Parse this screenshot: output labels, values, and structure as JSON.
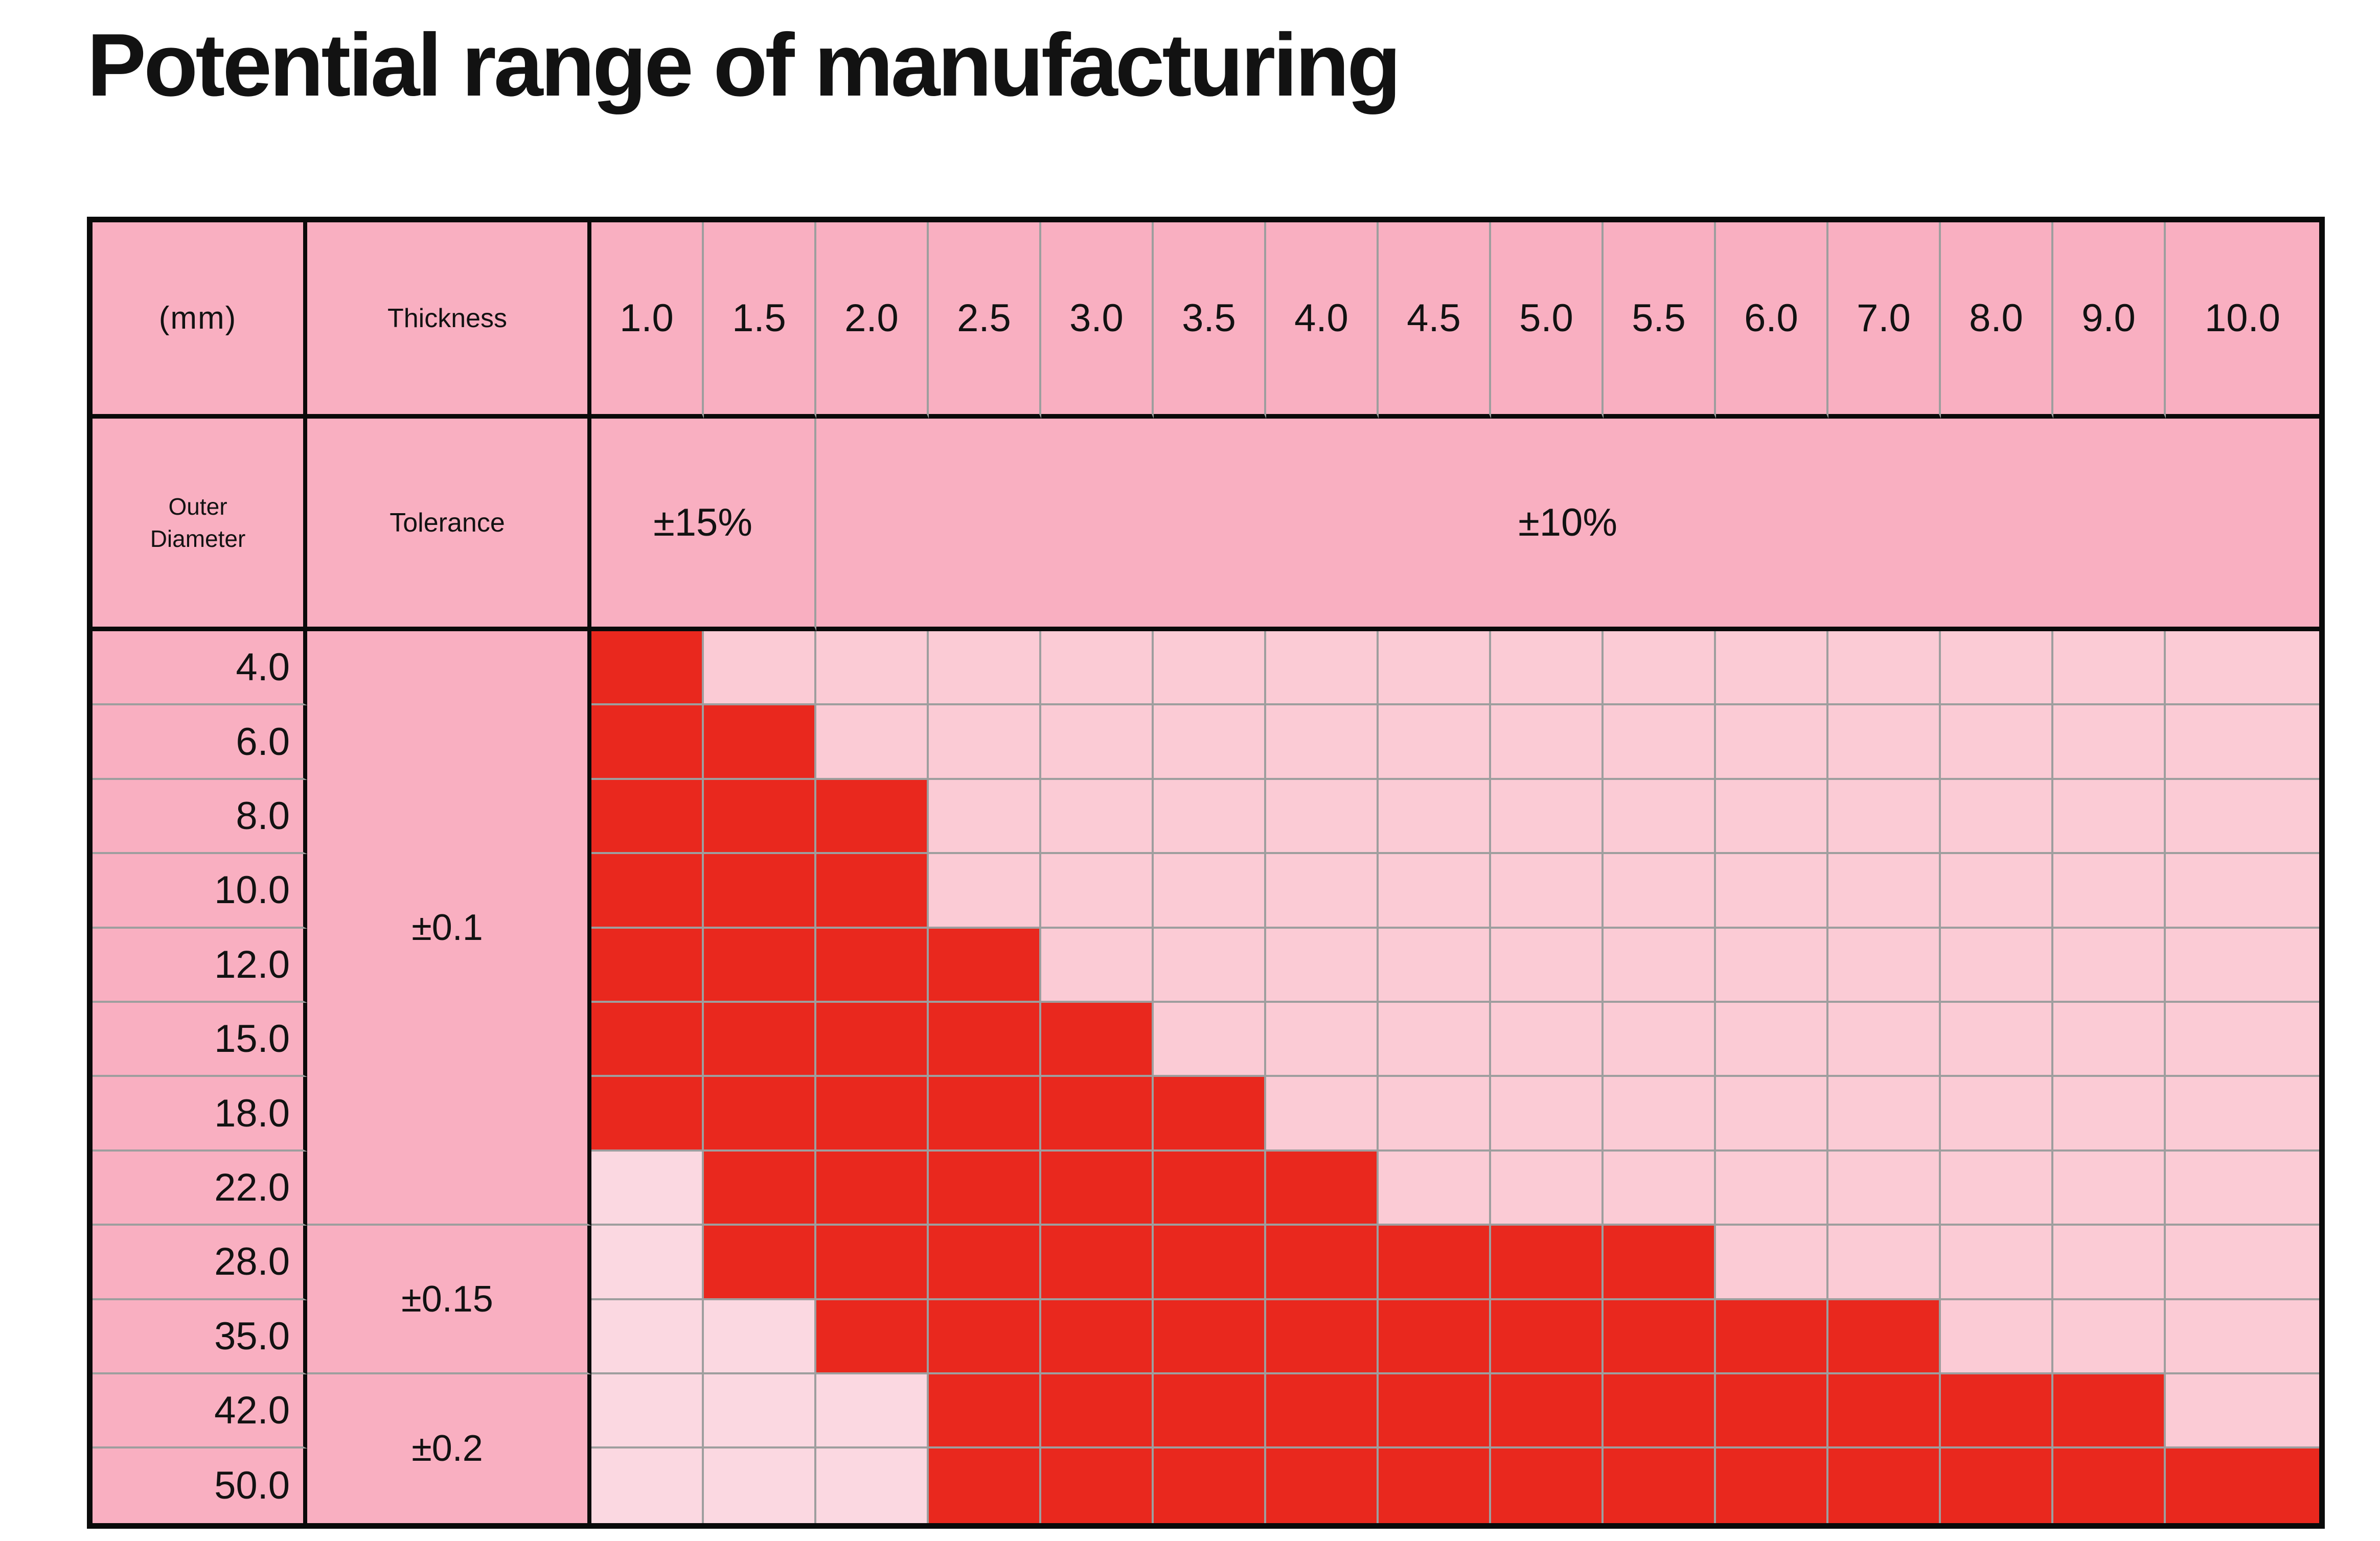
{
  "title": "Potential range of manufacturing",
  "table": {
    "unit_label": "(mm)",
    "thickness_label": "Thickness",
    "outer_diameter_label": "Outer Diameter",
    "tolerance_label": "Tolerance",
    "thickness_values": [
      "1.0",
      "1.5",
      "2.0",
      "2.5",
      "3.0",
      "3.5",
      "4.0",
      "4.5",
      "5.0",
      "5.5",
      "6.0",
      "7.0",
      "8.0",
      "9.0",
      "10.0"
    ],
    "thickness_tolerances": [
      {
        "label": "±15%",
        "col_span": 2
      },
      {
        "label": "±10%",
        "col_span": 13
      }
    ],
    "outer_diameters": [
      "4.0",
      "6.0",
      "8.0",
      "10.0",
      "12.0",
      "15.0",
      "18.0",
      "22.0",
      "28.0",
      "35.0",
      "42.0",
      "50.0"
    ],
    "diameter_tolerance_groups": [
      {
        "label": "±0.1",
        "row_span": 8
      },
      {
        "label": "±0.15",
        "row_span": 2
      },
      {
        "label": "±0.2",
        "row_span": 2
      }
    ]
  },
  "colors": {
    "header_pink": "#F9AFC1",
    "cell_pink": "#FBCBD5",
    "cell_light_pink": "#FBD8E1",
    "cell_red": "#E9281E",
    "grid_gray": "#9E9E9E",
    "border_black": "#0A0A0A",
    "title_black": "#121212"
  },
  "chart_data": {
    "type": "heatmap",
    "title": "Potential range of manufacturing",
    "x_label": "Thickness (mm)",
    "y_label": "Outer Diameter (mm)",
    "x": [
      "1.0",
      "1.5",
      "2.0",
      "2.5",
      "3.0",
      "3.5",
      "4.0",
      "4.5",
      "5.0",
      "5.5",
      "6.0",
      "7.0",
      "8.0",
      "9.0",
      "10.0"
    ],
    "y": [
      "4.0",
      "6.0",
      "8.0",
      "10.0",
      "12.0",
      "15.0",
      "18.0",
      "22.0",
      "28.0",
      "35.0",
      "42.0",
      "50.0"
    ],
    "x_tolerance": {
      "±15%": [
        "1.0",
        "1.5"
      ],
      "±10%": [
        "2.0",
        "2.5",
        "3.0",
        "3.5",
        "4.0",
        "4.5",
        "5.0",
        "5.5",
        "6.0",
        "7.0",
        "8.0",
        "9.0",
        "10.0"
      ]
    },
    "y_tolerance": {
      "±0.1": [
        "4.0",
        "6.0",
        "8.0",
        "10.0",
        "12.0",
        "15.0",
        "18.0",
        "22.0"
      ],
      "±0.15": [
        "28.0",
        "35.0"
      ],
      "±0.2": [
        "42.0",
        "50.0"
      ]
    },
    "state_colors": {
      "R": "#E9281E",
      "-": "#FBCBD5",
      "L": "#FBD8E1"
    },
    "state_meaning": {
      "R": "red cell — within potential manufacturing range",
      "-": "pink background cell",
      "L": "light pink cell"
    },
    "cell_states": [
      [
        "R",
        "-",
        "-",
        "-",
        "-",
        "-",
        "-",
        "-",
        "-",
        "-",
        "-",
        "-",
        "-",
        "-",
        "-"
      ],
      [
        "R",
        "R",
        "-",
        "-",
        "-",
        "-",
        "-",
        "-",
        "-",
        "-",
        "-",
        "-",
        "-",
        "-",
        "-"
      ],
      [
        "R",
        "R",
        "R",
        "-",
        "-",
        "-",
        "-",
        "-",
        "-",
        "-",
        "-",
        "-",
        "-",
        "-",
        "-"
      ],
      [
        "R",
        "R",
        "R",
        "-",
        "-",
        "-",
        "-",
        "-",
        "-",
        "-",
        "-",
        "-",
        "-",
        "-",
        "-"
      ],
      [
        "R",
        "R",
        "R",
        "R",
        "-",
        "-",
        "-",
        "-",
        "-",
        "-",
        "-",
        "-",
        "-",
        "-",
        "-"
      ],
      [
        "R",
        "R",
        "R",
        "R",
        "R",
        "-",
        "-",
        "-",
        "-",
        "-",
        "-",
        "-",
        "-",
        "-",
        "-"
      ],
      [
        "R",
        "R",
        "R",
        "R",
        "R",
        "R",
        "-",
        "-",
        "-",
        "-",
        "-",
        "-",
        "-",
        "-",
        "-"
      ],
      [
        "L",
        "R",
        "R",
        "R",
        "R",
        "R",
        "R",
        "-",
        "-",
        "-",
        "-",
        "-",
        "-",
        "-",
        "-"
      ],
      [
        "L",
        "R",
        "R",
        "R",
        "R",
        "R",
        "R",
        "R",
        "R",
        "R",
        "-",
        "-",
        "-",
        "-",
        "-"
      ],
      [
        "L",
        "L",
        "R",
        "R",
        "R",
        "R",
        "R",
        "R",
        "R",
        "R",
        "R",
        "R",
        "-",
        "-",
        "-"
      ],
      [
        "L",
        "L",
        "L",
        "R",
        "R",
        "R",
        "R",
        "R",
        "R",
        "R",
        "R",
        "R",
        "R",
        "R",
        "-"
      ],
      [
        "L",
        "L",
        "L",
        "R",
        "R",
        "R",
        "R",
        "R",
        "R",
        "R",
        "R",
        "R",
        "R",
        "R",
        "R"
      ]
    ]
  }
}
